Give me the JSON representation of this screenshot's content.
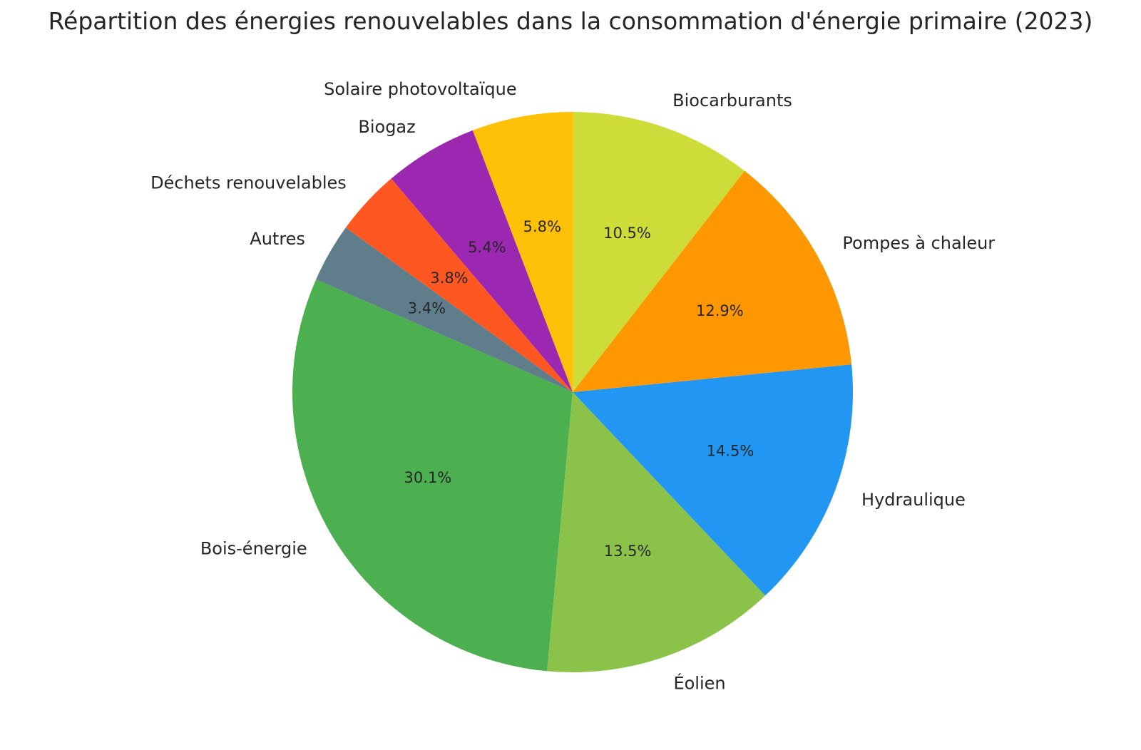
{
  "chart_data": {
    "type": "pie",
    "title": "Répartition des énergies renouvelables dans la consommation d'énergie primaire (2023)",
    "start_angle_deg": 90,
    "direction": "counterclockwise",
    "center": [
      803,
      550
    ],
    "radius": 393,
    "slices": [
      {
        "label": "Solaire photovoltaïque",
        "value": 5.8,
        "pct_label": "5.8%",
        "color": "#FFC107"
      },
      {
        "label": "Biogaz",
        "value": 5.4,
        "pct_label": "5.4%",
        "color": "#9C27B0"
      },
      {
        "label": "Déchets renouvelables",
        "value": 3.8,
        "pct_label": "3.8%",
        "color": "#FF5722"
      },
      {
        "label": "Autres",
        "value": 3.4,
        "pct_label": "3.4%",
        "color": "#607D8B"
      },
      {
        "label": "Bois-énergie",
        "value": 30.1,
        "pct_label": "30.1%",
        "color": "#4CAF50"
      },
      {
        "label": "Éolien",
        "value": 13.5,
        "pct_label": "13.5%",
        "color": "#8BC34A"
      },
      {
        "label": "Hydraulique",
        "value": 14.5,
        "pct_label": "14.5%",
        "color": "#2196F3"
      },
      {
        "label": "Pompes à chaleur",
        "value": 12.9,
        "pct_label": "12.9%",
        "color": "#FF9800"
      },
      {
        "label": "Biocarburants",
        "value": 10.5,
        "pct_label": "10.5%",
        "color": "#CDDC39"
      }
    ]
  }
}
